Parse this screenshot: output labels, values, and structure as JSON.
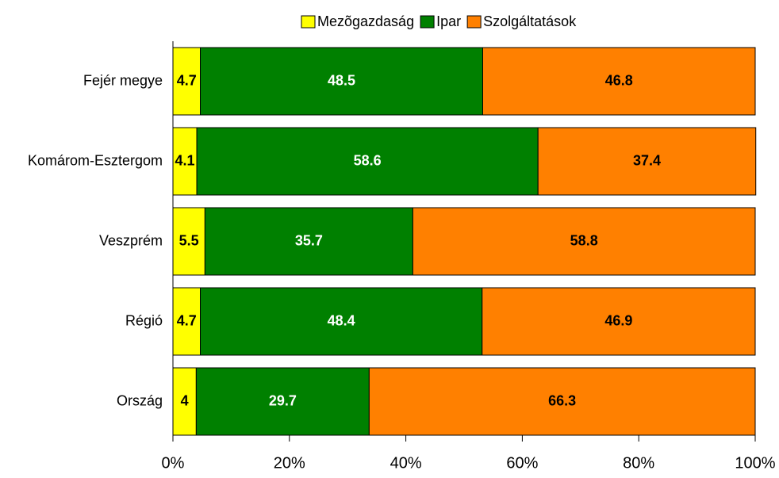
{
  "chart_data": {
    "type": "stacked_barh",
    "categories": [
      "Fejér megye",
      "Komárom-Esztergom",
      "Veszprém",
      "Régió",
      "Ország"
    ],
    "series": [
      {
        "name": "Mezõgazdaság",
        "color": "#ffff00",
        "label_color": "#000000",
        "values": [
          4.7,
          4.1,
          5.5,
          4.7,
          4
        ]
      },
      {
        "name": "Ipar",
        "color": "#008000",
        "label_color": "#ffffff",
        "values": [
          48.5,
          58.6,
          35.7,
          48.4,
          29.7
        ]
      },
      {
        "name": "Szolgáltatások",
        "color": "#ff8000",
        "label_color": "#000000",
        "values": [
          46.8,
          37.4,
          58.8,
          46.9,
          66.3
        ]
      }
    ],
    "xlim": [
      0,
      100
    ],
    "xticks": [
      {
        "value": 0,
        "label": "0%"
      },
      {
        "value": 20,
        "label": "20%"
      },
      {
        "value": 40,
        "label": "40%"
      },
      {
        "value": 60,
        "label": "60%"
      },
      {
        "value": 80,
        "label": "80%"
      },
      {
        "value": 100,
        "label": "100%"
      }
    ],
    "legend": "top"
  }
}
